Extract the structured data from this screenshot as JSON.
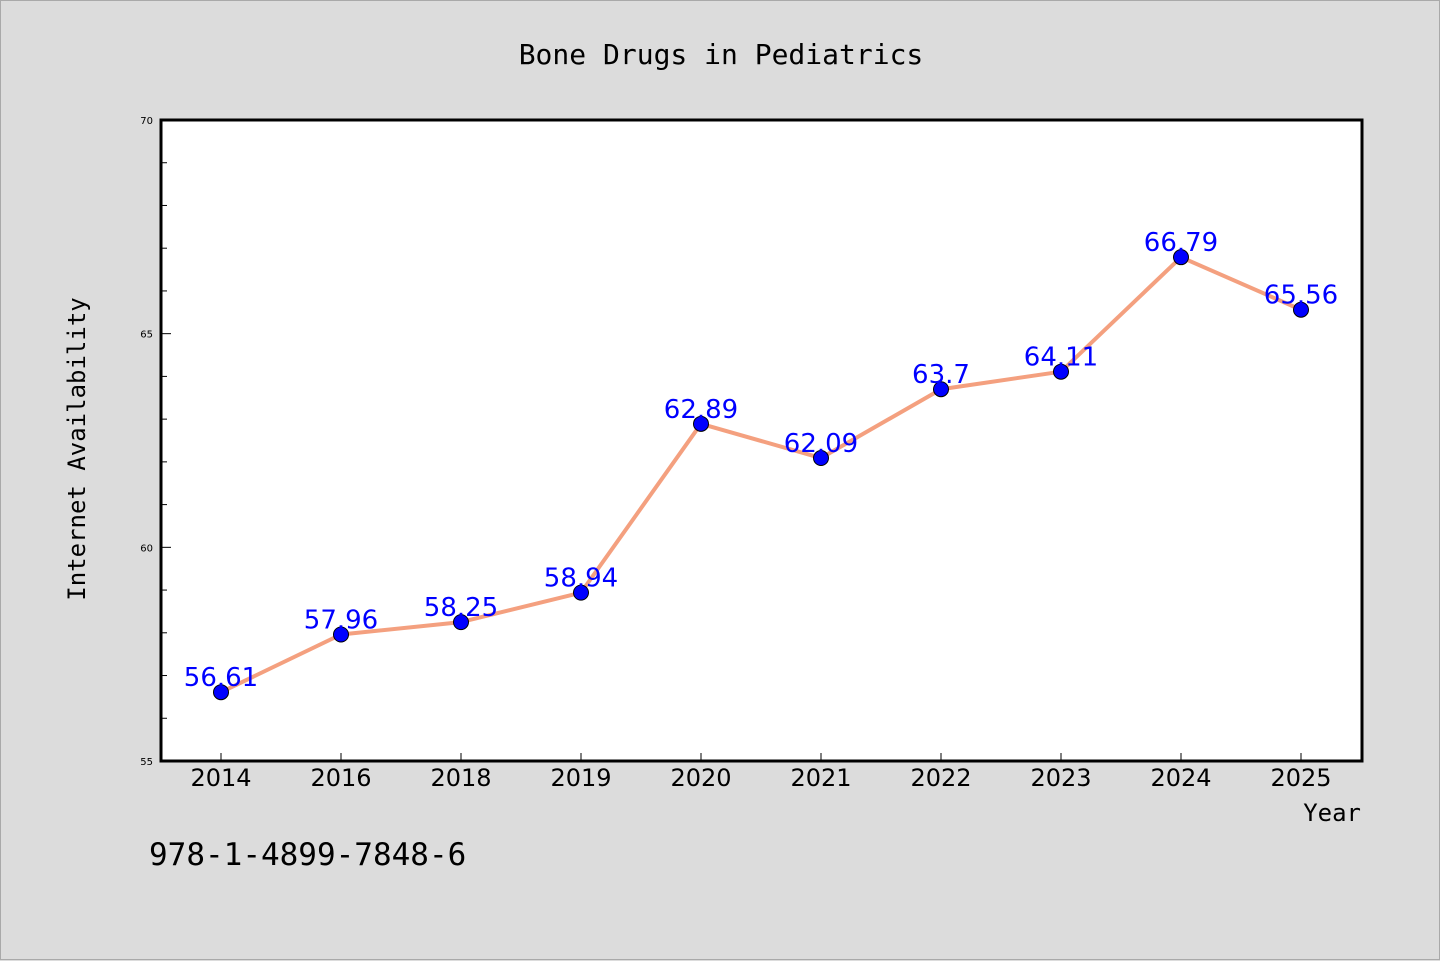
{
  "chart_data": {
    "type": "line",
    "title": "Bone Drugs in Pediatrics",
    "xlabel": "Year",
    "ylabel": "Internet Availability",
    "categories": [
      "2014",
      "2016",
      "2018",
      "2019",
      "2020",
      "2021",
      "2022",
      "2023",
      "2024",
      "2025"
    ],
    "series": [
      {
        "values": [
          56.61,
          57.96,
          58.25,
          58.94,
          62.89,
          62.09,
          63.7,
          64.11,
          66.79,
          65.56
        ],
        "labels": [
          "56.61",
          "57.96",
          "58.25",
          "58.94",
          "62.89",
          "62.09",
          "63.7",
          "64.11",
          "66.79",
          "65.56"
        ]
      }
    ],
    "ylim": [
      55,
      70
    ],
    "yticks": [
      55,
      60,
      65,
      70
    ],
    "yminor_step": 1,
    "grid": false,
    "line_color": "#f4a07f",
    "marker_color": "#0000ff",
    "label_color": "#0000ff"
  },
  "footer": {
    "isbn": "978-1-4899-7848-6"
  }
}
